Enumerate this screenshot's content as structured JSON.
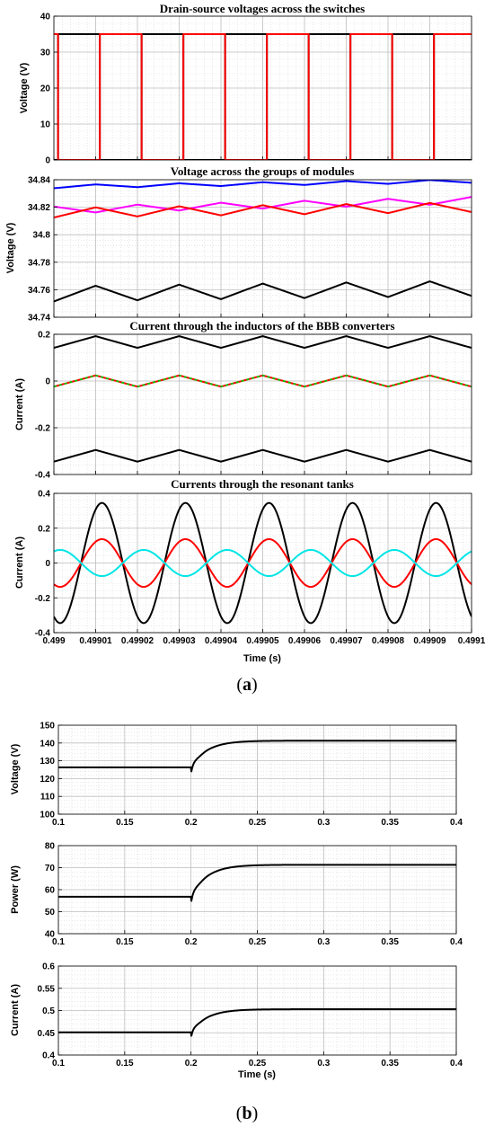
{
  "figure_labels": {
    "a": {
      "open": "(",
      "letter": "a",
      "close": ")"
    },
    "b": {
      "open": "(",
      "letter": "b",
      "close": ")"
    }
  },
  "chart_data": [
    {
      "id": "a1",
      "type": "line",
      "title": "Drain-source voltages across the switches",
      "xlabel": "",
      "ylabel": "Voltage (V)",
      "xlim": [
        0.499,
        0.4991
      ],
      "ylim": [
        0,
        40
      ],
      "xticks": [
        0.499,
        0.49901,
        0.49902,
        0.49903,
        0.49904,
        0.49905,
        0.49906,
        0.49907,
        0.49908,
        0.49909,
        0.4991
      ],
      "xtick_labels": [],
      "yticks": [
        0,
        10,
        20,
        30,
        40
      ],
      "ytick_labels": [
        "0",
        "10",
        "20",
        "30",
        "40"
      ],
      "grid": true,
      "colors": {
        "black": "#000000",
        "red": "#ff0000"
      },
      "series": [
        {
          "color": "#000000",
          "kind": "square",
          "period": 2e-05,
          "t0": 0.499001,
          "high": 35,
          "low": 0,
          "duty": 0.5
        },
        {
          "color": "#ff0000",
          "kind": "square",
          "period": 2e-05,
          "t0": 0.499011,
          "high": 35,
          "low": 0,
          "duty": 0.5
        }
      ]
    },
    {
      "id": "a2",
      "type": "line",
      "title": "Voltage across the groups of modules",
      "xlabel": "",
      "ylabel": "Voltage (V)",
      "xlim": [
        0.499,
        0.4991
      ],
      "ylim": [
        34.74,
        34.84
      ],
      "xticks": [
        0.499,
        0.49901,
        0.49902,
        0.49903,
        0.49904,
        0.49905,
        0.49906,
        0.49907,
        0.49908,
        0.49909,
        0.4991
      ],
      "xtick_labels": [],
      "yticks": [
        34.74,
        34.76,
        34.78,
        34.8,
        34.82,
        34.84
      ],
      "ytick_labels": [
        "34.74",
        "34.76",
        "34.78",
        "34.8",
        "34.82",
        "34.84"
      ],
      "grid": true,
      "colors": {
        "blue": "#0000ff",
        "magenta": "#ff00ff",
        "red": "#ff0000",
        "black": "#000000"
      },
      "series": [
        {
          "color": "#0000ff",
          "kind": "tri",
          "period": 2e-05,
          "phase": 0.0,
          "offset_start": 34.835,
          "offset_end": 34.839,
          "amp": 0.0012
        },
        {
          "color": "#ff00ff",
          "kind": "tri",
          "period": 2e-05,
          "phase": 0.5,
          "offset_start": 34.818,
          "offset_end": 34.825,
          "amp": 0.0025
        },
        {
          "color": "#ff0000",
          "kind": "tri",
          "period": 2e-05,
          "phase": 0.0,
          "offset_start": 34.816,
          "offset_end": 34.82,
          "amp": 0.0035
        },
        {
          "color": "#000000",
          "kind": "tri",
          "period": 2e-05,
          "phase": 0.0,
          "offset_start": 34.757,
          "offset_end": 34.761,
          "amp": 0.0055
        }
      ]
    },
    {
      "id": "a3",
      "type": "line",
      "title": "Current through the inductors of the BBB converters",
      "xlabel": "",
      "ylabel": "Current (A)",
      "xlim": [
        0.499,
        0.4991
      ],
      "ylim": [
        -0.4,
        0.2
      ],
      "xticks": [
        0.499,
        0.49901,
        0.49902,
        0.49903,
        0.49904,
        0.49905,
        0.49906,
        0.49907,
        0.49908,
        0.49909,
        0.4991
      ],
      "xtick_labels": [],
      "yticks": [
        -0.4,
        -0.2,
        0,
        0.2
      ],
      "ytick_labels": [
        "-0.4",
        "-0.2",
        "0",
        "0.2"
      ],
      "grid": true,
      "colors": {
        "black": "#000000",
        "red": "#ff0000",
        "green": "#00cc00"
      },
      "series": [
        {
          "color": "#000000",
          "kind": "tri",
          "period": 2e-05,
          "phase": 0.0,
          "offset_start": 0.167,
          "offset_end": 0.167,
          "amp": 0.025
        },
        {
          "color": "#ff0000",
          "kind": "tri",
          "period": 2e-05,
          "phase": 0.0,
          "offset_start": 0.0,
          "offset_end": 0.0,
          "amp": 0.024
        },
        {
          "color": "#00cc00",
          "kind": "tri",
          "period": 2e-05,
          "phase": 0.0,
          "offset_start": 0.0,
          "offset_end": 0.0,
          "amp": 0.024,
          "dashed": true
        },
        {
          "color": "#000000",
          "kind": "tri",
          "period": 2e-05,
          "phase": 0.0,
          "offset_start": -0.32,
          "offset_end": -0.32,
          "amp": 0.025
        }
      ]
    },
    {
      "id": "a4",
      "type": "line",
      "title": "Currents through the resonant tanks",
      "xlabel": "Time (s)",
      "ylabel": "Current (A)",
      "xlim": [
        0.499,
        0.4991
      ],
      "ylim": [
        -0.4,
        0.4
      ],
      "xticks": [
        0.499,
        0.49901,
        0.49902,
        0.49903,
        0.49904,
        0.49905,
        0.49906,
        0.49907,
        0.49908,
        0.49909,
        0.4991
      ],
      "xtick_labels": [
        "0.499",
        "0.49901",
        "0.49902",
        "0.49903",
        "0.49904",
        "0.49905",
        "0.49906",
        "0.49907",
        "0.49908",
        "0.49909",
        "0.4991"
      ],
      "yticks": [
        -0.4,
        -0.2,
        0,
        0.2,
        0.4
      ],
      "ytick_labels": [
        "-0.4",
        "-0.2",
        "0",
        "0.2",
        "0.4"
      ],
      "grid": true,
      "colors": {
        "black": "#000000",
        "red": "#ff0000",
        "cyan": "#00e5e5"
      },
      "series": [
        {
          "color": "#000000",
          "kind": "sine",
          "period": 2e-05,
          "phase_t": 0.4990065,
          "amp": 0.345
        },
        {
          "color": "#ff0000",
          "kind": "sine",
          "period": 2e-05,
          "phase_t": 0.4990065,
          "amp": 0.137
        },
        {
          "color": "#00e5e5",
          "kind": "sine",
          "period": 2e-05,
          "phase_t": 0.4990065,
          "amp": -0.075
        }
      ]
    },
    {
      "id": "b1",
      "type": "line",
      "title": "",
      "xlabel": "",
      "ylabel": "Voltage (V)",
      "xlim": [
        0.1,
        0.4
      ],
      "ylim": [
        100,
        150
      ],
      "xticks": [
        0.1,
        0.15,
        0.2,
        0.25,
        0.3,
        0.35,
        0.4
      ],
      "xtick_labels": [
        "0.1",
        "0.15",
        "0.2",
        "0.25",
        "0.3",
        "0.35",
        "0.4"
      ],
      "yticks": [
        100,
        110,
        120,
        130,
        140,
        150
      ],
      "ytick_labels": [
        "100",
        "110",
        "120",
        "130",
        "140",
        "150"
      ],
      "grid": true,
      "colors": {
        "black": "#000000"
      },
      "series": [
        {
          "color": "#000000",
          "kind": "step",
          "t_step": 0.2,
          "before": 126.3,
          "after": 141.3,
          "dip": 3.5,
          "tau": 0.012
        }
      ]
    },
    {
      "id": "b2",
      "type": "line",
      "title": "",
      "xlabel": "",
      "ylabel": "Power (W)",
      "xlim": [
        0.1,
        0.4
      ],
      "ylim": [
        40,
        80
      ],
      "xticks": [
        0.1,
        0.15,
        0.2,
        0.25,
        0.3,
        0.35,
        0.4
      ],
      "xtick_labels": [
        "0.1",
        "0.15",
        "0.2",
        "0.25",
        "0.3",
        "0.35",
        "0.4"
      ],
      "yticks": [
        40,
        50,
        60,
        70,
        80
      ],
      "ytick_labels": [
        "40",
        "50",
        "60",
        "70",
        "80"
      ],
      "grid": true,
      "colors": {
        "black": "#000000"
      },
      "series": [
        {
          "color": "#000000",
          "kind": "step",
          "t_step": 0.2,
          "before": 56.8,
          "after": 71.3,
          "dip": 3.0,
          "tau": 0.012
        }
      ]
    },
    {
      "id": "b3",
      "type": "line",
      "title": "",
      "xlabel": "Time (s)",
      "ylabel": "Current (A)",
      "xlim": [
        0.1,
        0.4
      ],
      "ylim": [
        0.4,
        0.6
      ],
      "xticks": [
        0.1,
        0.15,
        0.2,
        0.25,
        0.3,
        0.35,
        0.4
      ],
      "xtick_labels": [
        "0.1",
        "0.15",
        "0.2",
        "0.25",
        "0.3",
        "0.35",
        "0.4"
      ],
      "yticks": [
        0.4,
        0.45,
        0.5,
        0.55,
        0.6
      ],
      "ytick_labels": [
        "0.4",
        "0.45",
        "0.5",
        "0.55",
        "0.6"
      ],
      "grid": true,
      "colors": {
        "black": "#000000"
      },
      "series": [
        {
          "color": "#000000",
          "kind": "step",
          "t_step": 0.2,
          "before": 0.451,
          "after": 0.503,
          "dip": 0.012,
          "tau": 0.012
        }
      ]
    }
  ]
}
